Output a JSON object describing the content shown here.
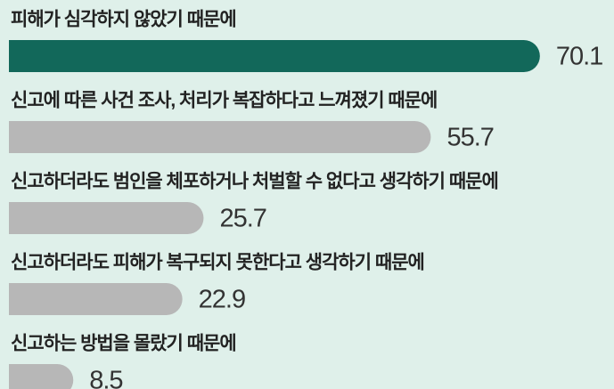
{
  "chart_data": {
    "type": "bar",
    "orientation": "horizontal",
    "categories": [
      "피해가 심각하지 않았기 때문에",
      "신고에 따른 사건 조사, 처리가 복잡하다고 느껴졌기 때문에",
      "신고하더라도 범인을 체포하거나 처벌할 수 없다고 생각하기 때문에",
      "신고하더라도 피해가 복구되지 못한다고 생각하기 때문에",
      "신고하는 방법을 몰랐기 때문에"
    ],
    "values": [
      70.1,
      55.7,
      25.7,
      22.9,
      8.5
    ],
    "colors": [
      "#12685a",
      "#b7b7b7",
      "#b7b7b7",
      "#b7b7b7",
      "#b7b7b7"
    ],
    "xlim": [
      0,
      80
    ]
  }
}
